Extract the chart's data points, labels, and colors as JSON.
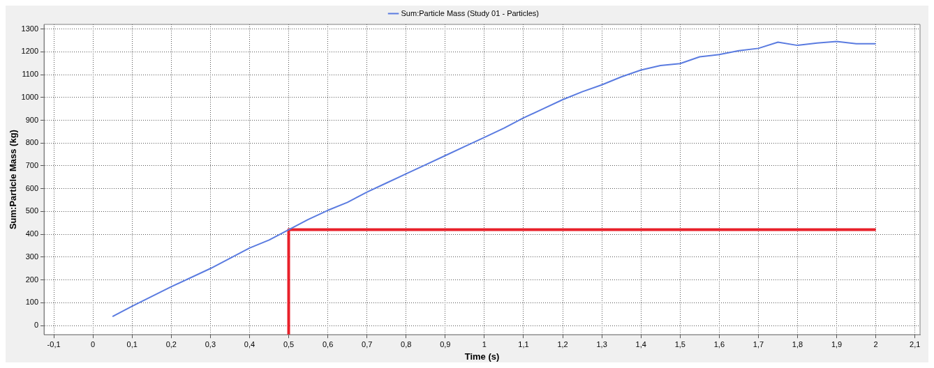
{
  "chart_data": {
    "type": "line",
    "xlabel": "Time (s)",
    "ylabel": "Sum:Particle Mass (kg)",
    "xlim": [
      -0.125,
      2.113
    ],
    "ylim": [
      -40,
      1320
    ],
    "xticks": [
      {
        "value": -0.1,
        "label": "-0,1"
      },
      {
        "value": 0,
        "label": "0"
      },
      {
        "value": 0.1,
        "label": "0,1"
      },
      {
        "value": 0.2,
        "label": "0,2"
      },
      {
        "value": 0.3,
        "label": "0,3"
      },
      {
        "value": 0.4,
        "label": "0,4"
      },
      {
        "value": 0.5,
        "label": "0,5"
      },
      {
        "value": 0.6,
        "label": "0,6"
      },
      {
        "value": 0.7,
        "label": "0,7"
      },
      {
        "value": 0.8,
        "label": "0,8"
      },
      {
        "value": 0.9,
        "label": "0,9"
      },
      {
        "value": 1,
        "label": "1"
      },
      {
        "value": 1.1,
        "label": "1,1"
      },
      {
        "value": 1.2,
        "label": "1,2"
      },
      {
        "value": 1.3,
        "label": "1,3"
      },
      {
        "value": 1.4,
        "label": "1,4"
      },
      {
        "value": 1.5,
        "label": "1,5"
      },
      {
        "value": 1.6,
        "label": "1,6"
      },
      {
        "value": 1.7,
        "label": "1,7"
      },
      {
        "value": 1.8,
        "label": "1,8"
      },
      {
        "value": 1.9,
        "label": "1,9"
      },
      {
        "value": 2,
        "label": "2"
      },
      {
        "value": 2.1,
        "label": "2,1"
      }
    ],
    "yticks": [
      0,
      100,
      200,
      300,
      400,
      500,
      600,
      700,
      800,
      900,
      1000,
      1100,
      1200,
      1300
    ],
    "grid": true,
    "legend": "top",
    "marker": "none",
    "line_style": "solid",
    "series": [
      {
        "name": "Sum:Particle Mass (Study 01 - Particles)",
        "color": "#5a7be0",
        "x": [
          0.05,
          0.1,
          0.2,
          0.3,
          0.35,
          0.4,
          0.45,
          0.5,
          0.55,
          0.6,
          0.65,
          0.7,
          0.75,
          0.8,
          0.85,
          0.9,
          0.95,
          1.0,
          1.05,
          1.1,
          1.15,
          1.2,
          1.25,
          1.3,
          1.35,
          1.4,
          1.45,
          1.5,
          1.55,
          1.6,
          1.65,
          1.7,
          1.75,
          1.8,
          1.85,
          1.9,
          1.95,
          2.0
        ],
        "values": [
          40,
          85,
          170,
          250,
          295,
          340,
          375,
          420,
          465,
          505,
          540,
          585,
          625,
          665,
          705,
          745,
          785,
          825,
          865,
          910,
          950,
          990,
          1025,
          1055,
          1090,
          1120,
          1140,
          1148,
          1178,
          1188,
          1205,
          1215,
          1242,
          1228,
          1238,
          1245,
          1235,
          1235
        ]
      },
      {
        "color": "#e8202a",
        "x": [
          0.5,
          0.5,
          2.0
        ],
        "values": [
          -40,
          420,
          420
        ]
      }
    ]
  }
}
